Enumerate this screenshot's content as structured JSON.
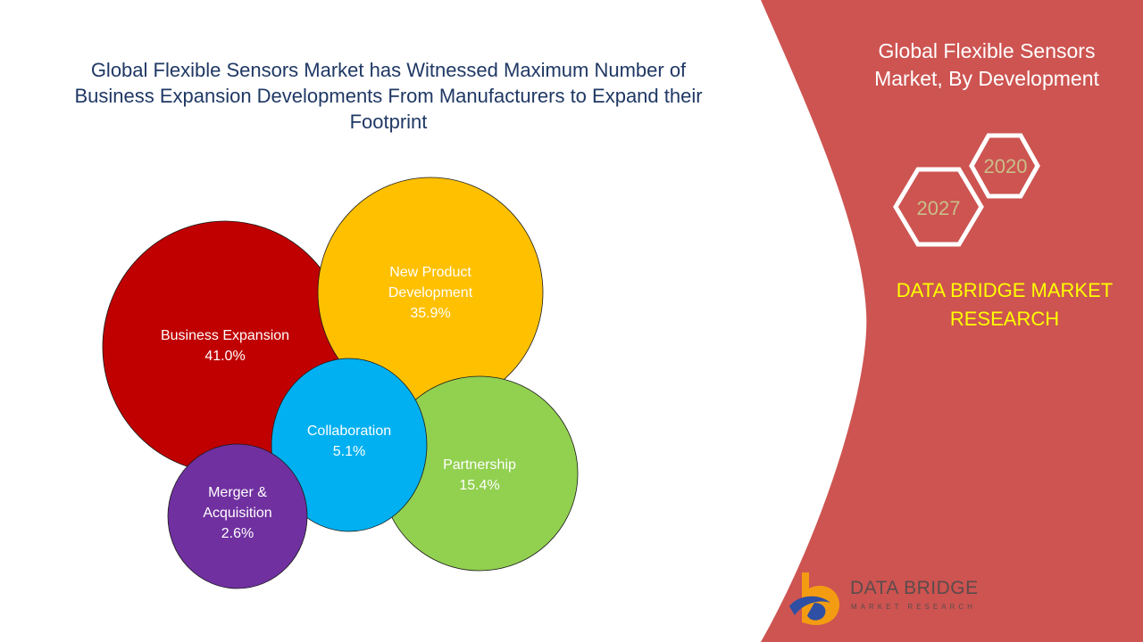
{
  "title_lines": [
    "Global Flexible Sensors Market has Witnessed Maximum Number of",
    "Business Expansion Developments From Manufacturers to Expand their",
    "Footprint"
  ],
  "side_panel": {
    "title_lines": [
      "Global Flexible Sensors",
      "Market, By Development"
    ],
    "years": [
      "2020",
      "2027"
    ],
    "brand_lines": [
      "DATA BRIDGE MARKET",
      "RESEARCH"
    ],
    "logo_name": "DATA BRIDGE",
    "logo_tagline": "MARKET RESEARCH"
  },
  "colors": {
    "panel": "#cd5451",
    "title": "#1f3864",
    "brand": "#ffff00",
    "year_text": "#c9bf8a"
  },
  "chart_data": {
    "type": "bubble",
    "series": [
      {
        "label_lines": [
          "Business Expansion"
        ],
        "value": 41.0,
        "value_label": "41.0%",
        "color": "#c00000"
      },
      {
        "label_lines": [
          "New Product",
          "Development"
        ],
        "value": 35.9,
        "value_label": "35.9%",
        "color": "#ffc000"
      },
      {
        "label_lines": [
          "Partnership"
        ],
        "value": 15.4,
        "value_label": "15.4%",
        "color": "#92d050"
      },
      {
        "label_lines": [
          "Collaboration"
        ],
        "value": 5.1,
        "value_label": "5.1%",
        "color": "#00b0f0"
      },
      {
        "label_lines": [
          "Merger &",
          "Acquisition"
        ],
        "value": 2.6,
        "value_label": "2.6%",
        "color": "#7030a0"
      }
    ]
  }
}
